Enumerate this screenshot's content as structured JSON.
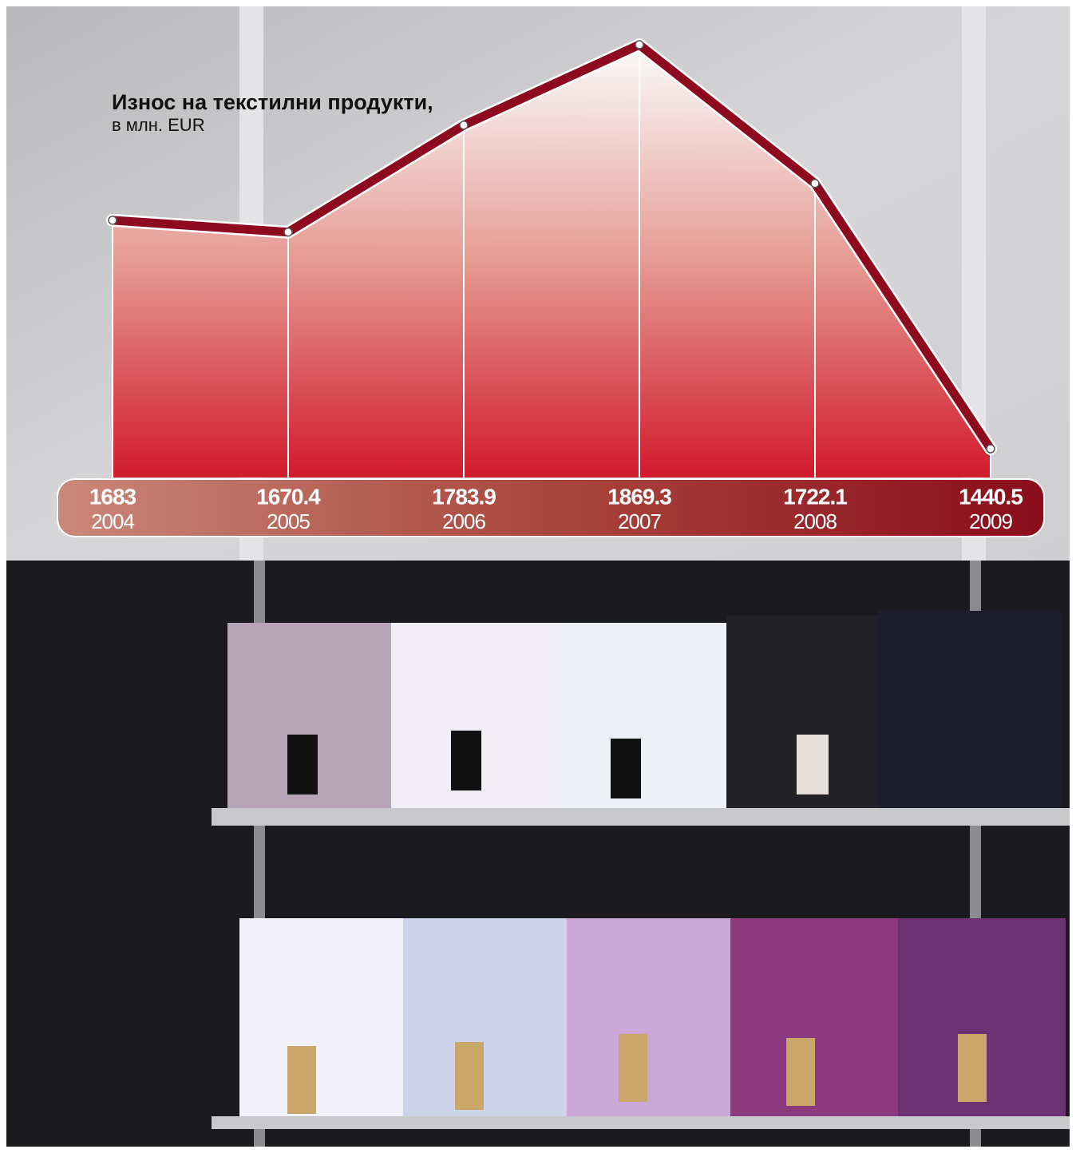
{
  "chart_data": {
    "type": "line",
    "title": "Износ на текстилни продукти,",
    "subtitle": "в млн. EUR",
    "categories": [
      "2004",
      "2005",
      "2006",
      "2007",
      "2008",
      "2009"
    ],
    "values": [
      1683,
      1670.4,
      1783.9,
      1869.3,
      1722.1,
      1440.5
    ],
    "color": "#8e0a1f",
    "ylim": [
      1410,
      1910
    ]
  }
}
